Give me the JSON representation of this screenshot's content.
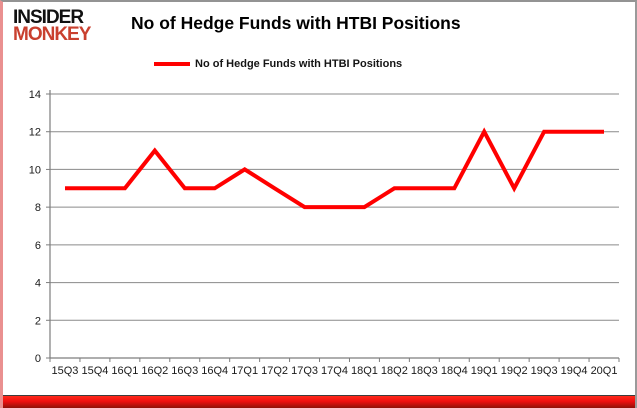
{
  "brand": {
    "line1": "INSIDER",
    "line2": "MONKEY"
  },
  "title": "No of Hedge Funds with HTBI Positions",
  "legend": {
    "label": "No of Hedge Funds with HTBI Positions",
    "line_color": "#ff0000"
  },
  "colors": {
    "series_line": "#ff0000",
    "gridline": "#8a8a8a",
    "axis": "#7d7d7d",
    "tick_text": "#1a1a1a",
    "brand_black": "#111111",
    "brand_red": "#c9402f",
    "frame_red": "#ee1010"
  },
  "chart_data": {
    "type": "line",
    "title": "No of Hedge Funds with HTBI Positions",
    "categories": [
      "15Q3",
      "15Q4",
      "16Q1",
      "16Q2",
      "16Q3",
      "16Q4",
      "17Q1",
      "17Q2",
      "17Q3",
      "17Q4",
      "18Q1",
      "18Q2",
      "18Q3",
      "18Q4",
      "19Q1",
      "19Q2",
      "19Q3",
      "19Q4",
      "20Q1"
    ],
    "values": [
      9,
      9,
      9,
      11,
      9,
      9,
      10,
      9,
      8,
      8,
      8,
      9,
      9,
      9,
      12,
      9,
      12,
      12,
      12
    ],
    "xlabel": "",
    "ylabel": "",
    "ylim": [
      0,
      14
    ],
    "ytick_step": 2,
    "yticks": [
      0,
      2,
      4,
      6,
      8,
      10,
      12,
      14
    ],
    "grid": true,
    "legend_position": "top-center",
    "series_name": "No of Hedge Funds with HTBI Positions"
  }
}
